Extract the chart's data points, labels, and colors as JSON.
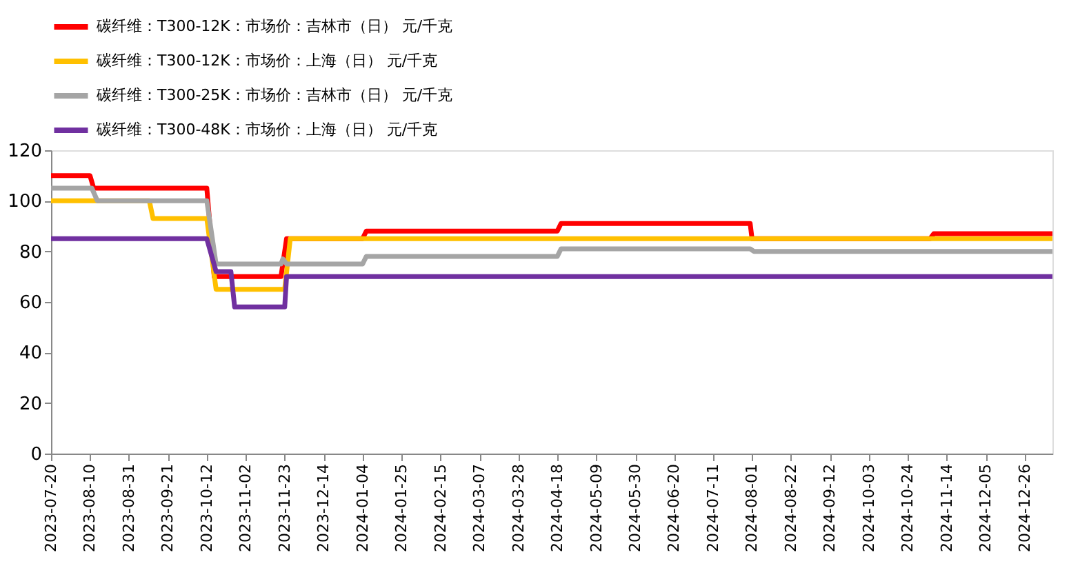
{
  "chart_data": {
    "type": "line",
    "ylim": [
      0,
      120
    ],
    "yticks": [
      0,
      20,
      40,
      60,
      80,
      100,
      120
    ],
    "xlim": [
      "2023-07-20",
      "2025-01-10"
    ],
    "xticks": [
      "2023-07-20",
      "2023-08-10",
      "2023-08-31",
      "2023-09-21",
      "2023-10-12",
      "2023-11-02",
      "2023-11-23",
      "2023-12-14",
      "2024-01-04",
      "2024-01-25",
      "2024-02-15",
      "2024-03-07",
      "2024-03-28",
      "2024-04-18",
      "2024-05-09",
      "2024-05-30",
      "2024-06-20",
      "2024-07-11",
      "2024-08-01",
      "2024-08-22",
      "2024-09-12",
      "2024-10-03",
      "2024-10-24",
      "2024-11-14",
      "2024-12-05",
      "2024-12-26"
    ],
    "grid": false,
    "legend": "top",
    "marker": "none",
    "line_style": "solid",
    "series": [
      {
        "name": "碳纤维：T300-12K：市场价：吉林市（日） 元/千克",
        "color": "#ff0000",
        "x": [
          "2023-07-20",
          "2023-08-10",
          "2023-08-12",
          "2023-10-12",
          "2023-10-16",
          "2023-11-21",
          "2023-11-24",
          "2024-01-04",
          "2024-01-06",
          "2024-04-18",
          "2024-04-20",
          "2024-07-31",
          "2024-08-01",
          "2024-11-05",
          "2024-11-07",
          "2025-01-10"
        ],
        "values": [
          110,
          110,
          105,
          105,
          70,
          70,
          85,
          85,
          88,
          88,
          91,
          91,
          85,
          85,
          87,
          87
        ]
      },
      {
        "name": "碳纤维：T300-12K：市场价：上海（日） 元/千克",
        "color": "#ffc000",
        "x": [
          "2023-07-20",
          "2023-09-11",
          "2023-09-13",
          "2023-10-12",
          "2023-10-17",
          "2023-11-23",
          "2023-11-26",
          "2025-01-10"
        ],
        "values": [
          100,
          100,
          93,
          93,
          65,
          65,
          85,
          85
        ]
      },
      {
        "name": "碳纤维：T300-25K：市场价：吉林市（日） 元/千克",
        "color": "#a5a5a5",
        "x": [
          "2023-07-20",
          "2023-08-11",
          "2023-08-14",
          "2023-10-12",
          "2023-10-17",
          "2023-11-21",
          "2023-11-22",
          "2023-11-24",
          "2024-01-04",
          "2024-01-06",
          "2024-04-18",
          "2024-04-20",
          "2024-07-31",
          "2024-08-02",
          "2025-01-10"
        ],
        "values": [
          105,
          105,
          100,
          100,
          75,
          75,
          77,
          75,
          75,
          78,
          78,
          81,
          81,
          80,
          80
        ]
      },
      {
        "name": "碳纤维：T300-48K：市场价：上海（日） 元/千克",
        "color": "#7030a0",
        "x": [
          "2023-07-20",
          "2023-10-12",
          "2023-10-17",
          "2023-10-25",
          "2023-10-27",
          "2023-11-23",
          "2023-11-24",
          "2025-01-10"
        ],
        "values": [
          85,
          85,
          72,
          72,
          58,
          58,
          70,
          70
        ]
      }
    ]
  }
}
